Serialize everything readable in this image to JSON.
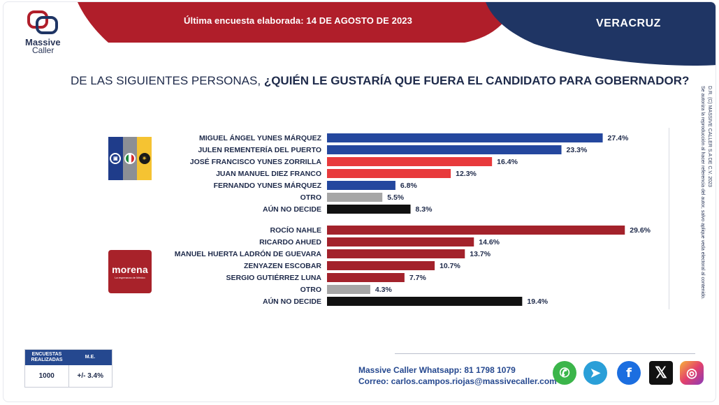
{
  "header": {
    "survey_date_text": "Última encuesta elaborada: 14 DE AGOSTO DE 2023",
    "region": "VERACRUZ",
    "colors": {
      "red": "#b01e2a",
      "navy": "#1f3564"
    }
  },
  "logo": {
    "name_line1": "Massive",
    "name_line2": "Caller"
  },
  "question": {
    "prefix": "DE LAS SIGUIENTES PERSONAS, ",
    "bold": "¿QUIÉN LE GUSTARÍA QUE FUERA EL CANDIDATO PARA GOBERNADOR?"
  },
  "parties": {
    "coalition_icon": "pan-pri-prd-flag",
    "morena": {
      "word": "morena",
      "tagline": "La esperanza de México"
    }
  },
  "chart_data": [
    {
      "type": "bar",
      "orientation": "horizontal",
      "group": "PAN-PRI-PRD",
      "categories": [
        "MIGUEL ÁNGEL YUNES MÁRQUEZ",
        "JULEN REMENTERÍA DEL PUERTO",
        "JOSÉ FRANCISCO YUNES ZORRILLA",
        "JUAN MANUEL DIEZ FRANCO",
        "FERNANDO YUNES MÁRQUEZ",
        "OTRO",
        "AÚN NO DECIDE"
      ],
      "values": [
        27.4,
        23.3,
        16.4,
        12.3,
        6.8,
        5.5,
        8.3
      ],
      "labels": [
        "27.4%",
        "23.3%",
        "16.4%",
        "12.3%",
        "6.8%",
        "5.5%",
        "8.3%"
      ],
      "colors": [
        "#24479e",
        "#24479e",
        "#e83a3c",
        "#e83a3c",
        "#24479e",
        "#a6a6a6",
        "#111111"
      ]
    },
    {
      "type": "bar",
      "orientation": "horizontal",
      "group": "MORENA",
      "categories": [
        "ROCÍO NAHLE",
        "RICARDO AHUED",
        "MANUEL HUERTA LADRÓN DE GUEVARA",
        "ZENYAZEN ESCOBAR",
        "SERGIO GUTIÉRREZ LUNA",
        "OTRO",
        "AÚN NO DECIDE"
      ],
      "values": [
        29.6,
        14.6,
        13.7,
        10.7,
        7.7,
        4.3,
        19.4
      ],
      "labels": [
        "29.6%",
        "14.6%",
        "13.7%",
        "10.7%",
        "7.7%",
        "4.3%",
        "19.4%"
      ],
      "colors": [
        "#a3222b",
        "#a3222b",
        "#a3222b",
        "#a3222b",
        "#a3222b",
        "#a6a6a6",
        "#111111"
      ]
    }
  ],
  "side_note": {
    "line1": "D.R. (C) MASSIVE CALLER S.A DE C.V. 2023",
    "line2": "Se autoriza la reproducción al hacer referencia del autor, salvo aplique veda electoral al contenido."
  },
  "stats": {
    "col1_header": "ENCUESTAS REALIZADAS",
    "col2_header": "M.E.",
    "col1_value": "1000",
    "col2_value": "+/- 3.4%"
  },
  "contact": {
    "whatsapp_text": "Massive Caller Whatsapp: 81 1798 1079",
    "email_text": "Correo: carlos.campos.riojas@massivecaller.com"
  },
  "social": [
    "whatsapp-icon",
    "telegram-icon",
    "facebook-icon",
    "x-icon",
    "instagram-icon"
  ]
}
